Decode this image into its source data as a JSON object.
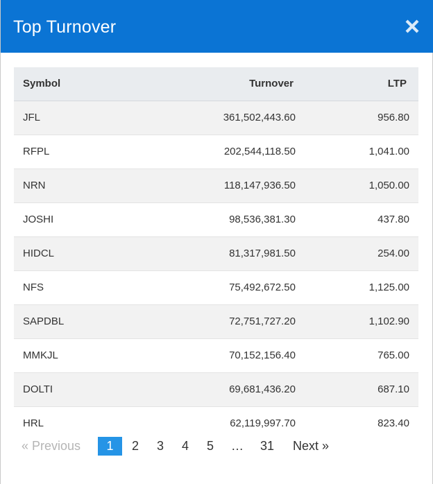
{
  "modal": {
    "title": "Top Turnover",
    "close_symbol": "×",
    "header_color": "#0b74d4"
  },
  "table": {
    "headers": {
      "symbol": "Symbol",
      "turnover": "Turnover",
      "ltp": "LTP"
    },
    "rows": [
      {
        "symbol": "JFL",
        "turnover": "361,502,443.60",
        "ltp": "956.80"
      },
      {
        "symbol": "RFPL",
        "turnover": "202,544,118.50",
        "ltp": "1,041.00"
      },
      {
        "symbol": "NRN",
        "turnover": "118,147,936.50",
        "ltp": "1,050.00"
      },
      {
        "symbol": "JOSHI",
        "turnover": "98,536,381.30",
        "ltp": "437.80"
      },
      {
        "symbol": "HIDCL",
        "turnover": "81,317,981.50",
        "ltp": "254.00"
      },
      {
        "symbol": "NFS",
        "turnover": "75,492,672.50",
        "ltp": "1,125.00"
      },
      {
        "symbol": "SAPDBL",
        "turnover": "72,751,727.20",
        "ltp": "1,102.90"
      },
      {
        "symbol": "MMKJL",
        "turnover": "70,152,156.40",
        "ltp": "765.00"
      },
      {
        "symbol": "DOLTI",
        "turnover": "69,681,436.20",
        "ltp": "687.10"
      },
      {
        "symbol": "HRL",
        "turnover": "62,119,997.70",
        "ltp": "823.40"
      }
    ]
  },
  "pagination": {
    "previous": "«  Previous",
    "pages": [
      "1",
      "2",
      "3",
      "4",
      "5"
    ],
    "ellipsis": "…",
    "last": "31",
    "next": "Next  »",
    "active_color": "#2594e6"
  }
}
